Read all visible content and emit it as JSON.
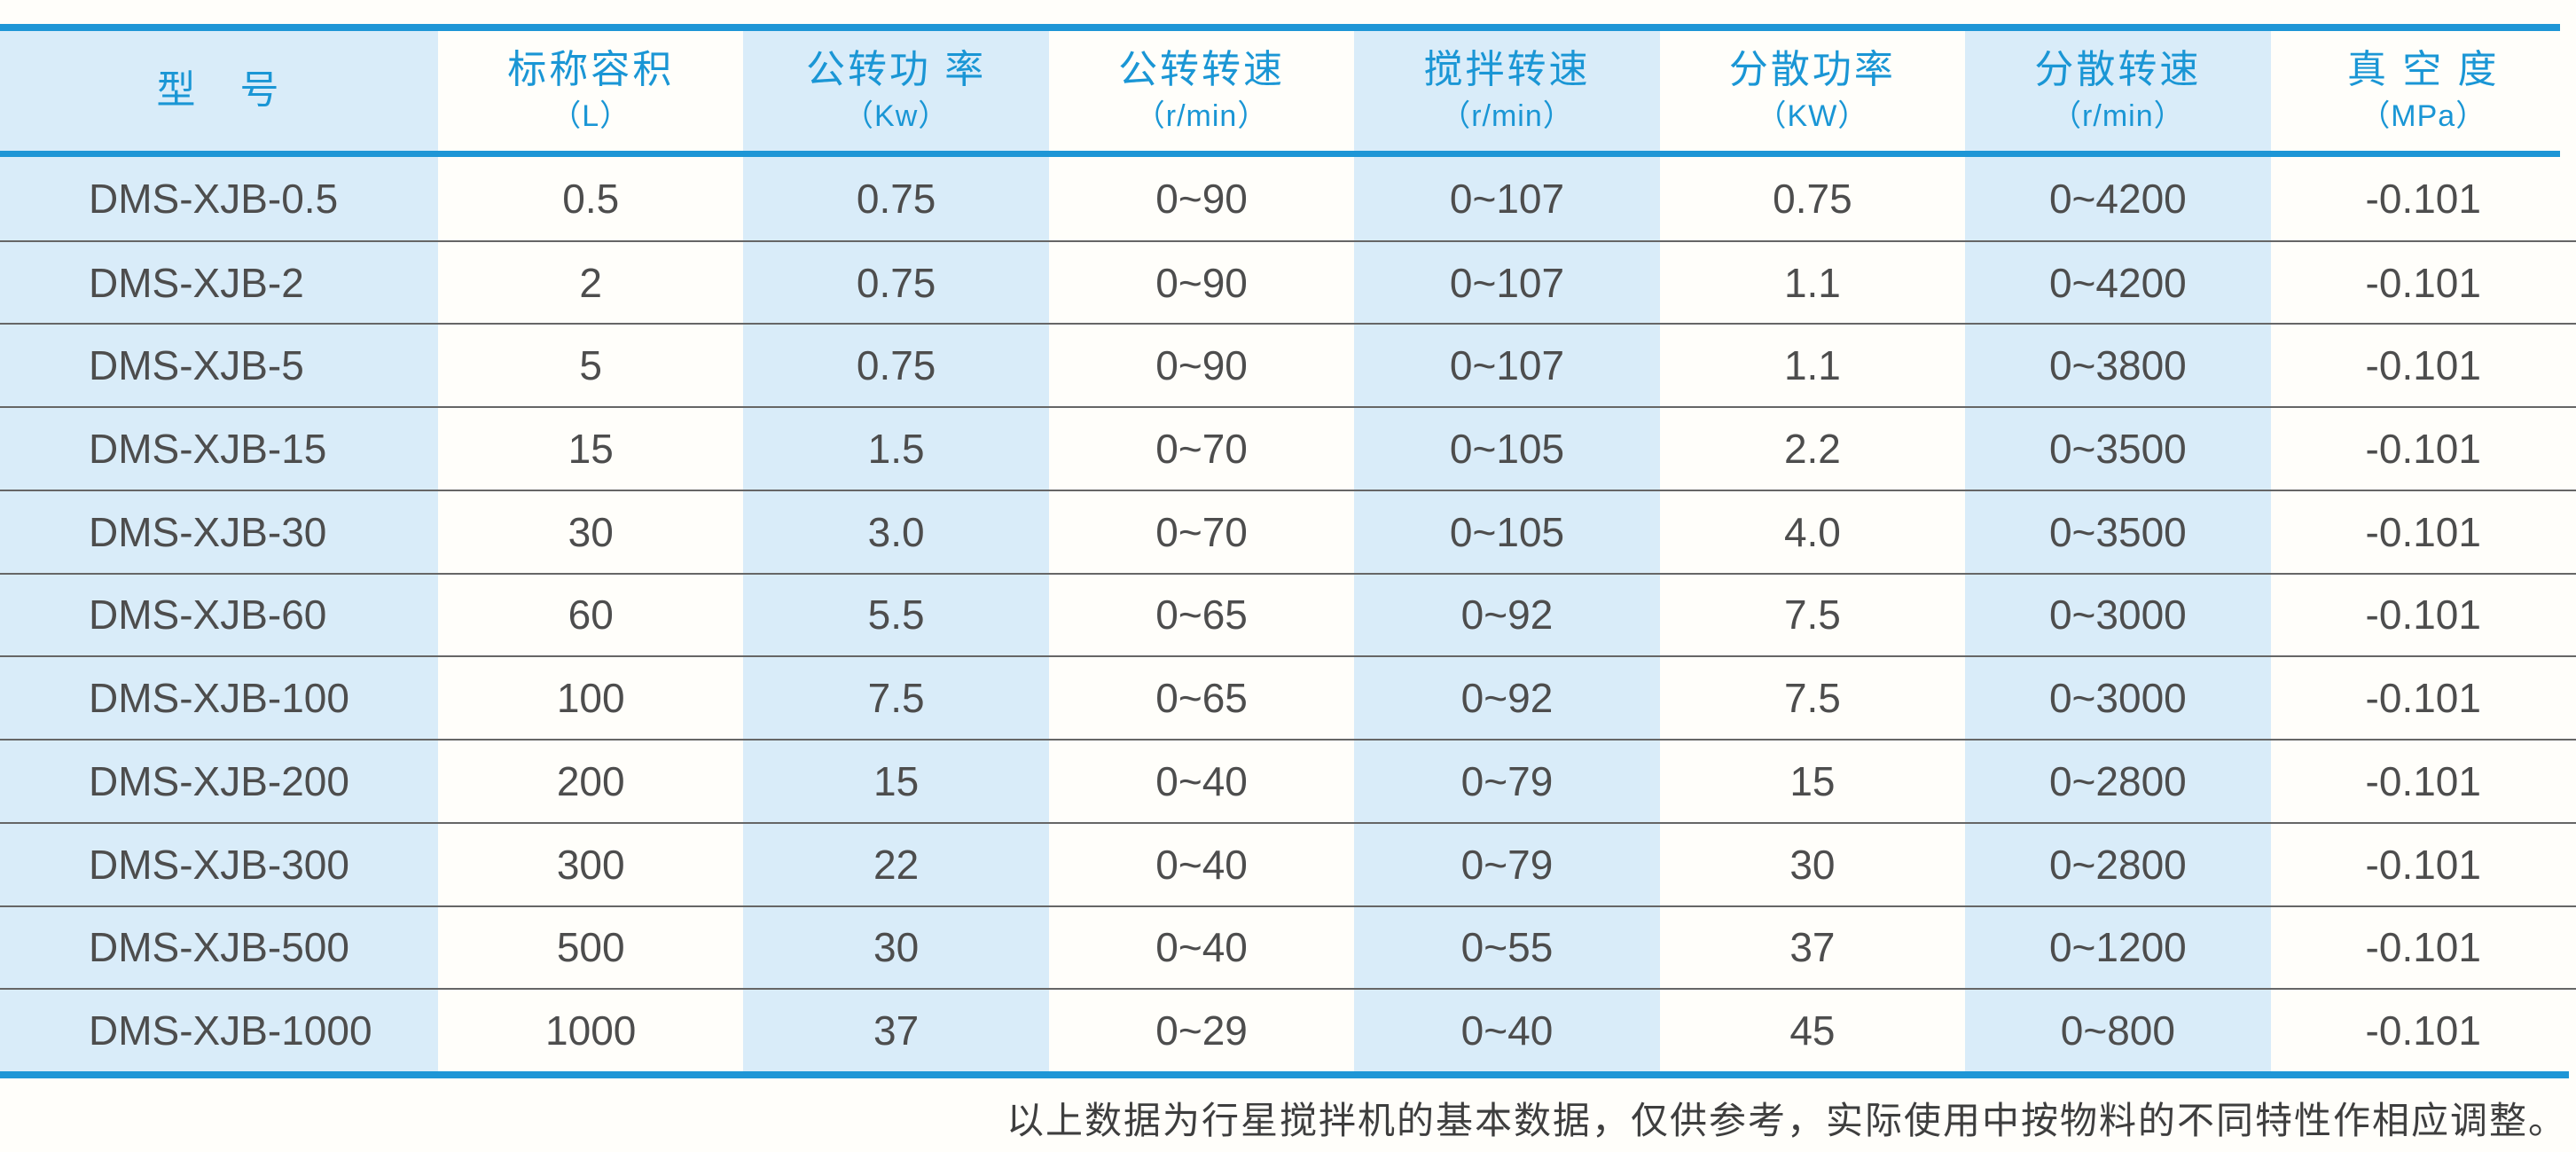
{
  "chart_data": {
    "type": "table",
    "columns": [
      {
        "label": "型　号",
        "unit": ""
      },
      {
        "label": "标称容积",
        "unit": "（L）"
      },
      {
        "label": "公转功 率",
        "unit": "（Kw）"
      },
      {
        "label": "公转转速",
        "unit": "（r/min）"
      },
      {
        "label": "搅拌转速",
        "unit": "（r/min）"
      },
      {
        "label": "分散功率",
        "unit": "（KW）"
      },
      {
        "label": "分散转速",
        "unit": "（r/min）"
      },
      {
        "label": "真 空 度",
        "unit": "（MPa）"
      }
    ],
    "rows": [
      [
        "DMS-XJB-0.5",
        "0.5",
        "0.75",
        "0~90",
        "0~107",
        "0.75",
        "0~4200",
        "-0.101"
      ],
      [
        "DMS-XJB-2",
        "2",
        "0.75",
        "0~90",
        "0~107",
        "1.1",
        "0~4200",
        "-0.101"
      ],
      [
        "DMS-XJB-5",
        "5",
        "0.75",
        "0~90",
        "0~107",
        "1.1",
        "0~3800",
        "-0.101"
      ],
      [
        "DMS-XJB-15",
        "15",
        "1.5",
        "0~70",
        "0~105",
        "2.2",
        "0~3500",
        "-0.101"
      ],
      [
        "DMS-XJB-30",
        "30",
        "3.0",
        "0~70",
        "0~105",
        "4.0",
        "0~3500",
        "-0.101"
      ],
      [
        "DMS-XJB-60",
        "60",
        "5.5",
        "0~65",
        "0~92",
        "7.5",
        "0~3000",
        "-0.101"
      ],
      [
        "DMS-XJB-100",
        "100",
        "7.5",
        "0~65",
        "0~92",
        "7.5",
        "0~3000",
        "-0.101"
      ],
      [
        "DMS-XJB-200",
        "200",
        "15",
        "0~40",
        "0~79",
        "15",
        "0~2800",
        "-0.101"
      ],
      [
        "DMS-XJB-300",
        "300",
        "22",
        "0~40",
        "0~79",
        "30",
        "0~2800",
        "-0.101"
      ],
      [
        "DMS-XJB-500",
        "500",
        "30",
        "0~40",
        "0~55",
        "37",
        "0~1200",
        "-0.101"
      ],
      [
        "DMS-XJB-1000",
        "1000",
        "37",
        "0~29",
        "0~40",
        "45",
        "0~800",
        "-0.101"
      ]
    ],
    "legend_position": "none",
    "grid": "horizontal-row-separators"
  },
  "footer": {
    "note": "以上数据为行星搅拌机的基本数据，仅供参考，实际使用中按物料的不同特性作相应调整。"
  },
  "colors": {
    "accent": "#1e96d6",
    "header_text": "#1a96d5",
    "stripe": "#d9ecf9",
    "row_line": "#666666",
    "cell_text": "#4d4d4d",
    "note_text": "#3e3e3e"
  }
}
